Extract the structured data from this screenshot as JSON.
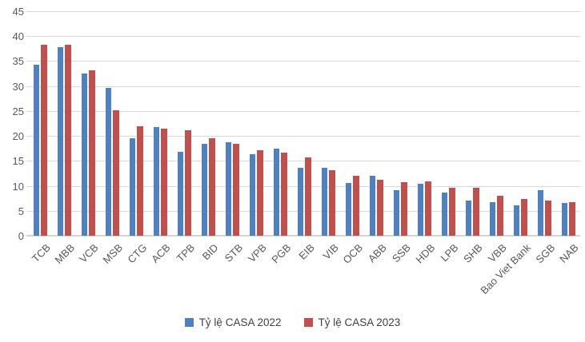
{
  "chart_data": {
    "type": "bar",
    "title": "",
    "xlabel": "",
    "ylabel": "",
    "ylim": [
      0,
      45
    ],
    "y_ticks": [
      0,
      5,
      10,
      15,
      20,
      25,
      30,
      35,
      40,
      45
    ],
    "grid": true,
    "legend_position": "bottom-center",
    "categories": [
      "TCB",
      "MBB",
      "VCB",
      "MSB",
      "CTG",
      "ACB",
      "TPB",
      "BID",
      "STB",
      "VPB",
      "PGB",
      "EIB",
      "VIB",
      "OCB",
      "ABB",
      "SSB",
      "HDB",
      "LPB",
      "SHB",
      "VBB",
      "Bao Viet Bank",
      "SGB",
      "NAB"
    ],
    "series": [
      {
        "name": "Tỷ lệ CASA 2022",
        "color": "#4F81BD",
        "values": [
          34.3,
          37.8,
          32.5,
          29.7,
          19.5,
          21.8,
          16.8,
          18.4,
          18.8,
          16.4,
          17.4,
          13.6,
          13.6,
          10.5,
          12.0,
          9.2,
          10.4,
          8.7,
          7.1,
          6.8,
          6.1,
          9.2,
          6.5
        ]
      },
      {
        "name": "Tỷ lệ CASA 2023",
        "color": "#C0504D",
        "values": [
          38.3,
          38.2,
          33.1,
          25.2,
          22.0,
          21.5,
          21.1,
          19.5,
          18.4,
          17.1,
          16.7,
          15.7,
          13.2,
          12.0,
          11.2,
          10.8,
          10.9,
          9.6,
          9.6,
          8.0,
          7.3,
          7.1,
          6.8
        ]
      }
    ],
    "colors": {
      "gridline": "#d9d9d9",
      "axis_line": "#d3d3d3",
      "axis_text": "#595959",
      "legend_text": "#404040",
      "background": "#ffffff"
    }
  }
}
